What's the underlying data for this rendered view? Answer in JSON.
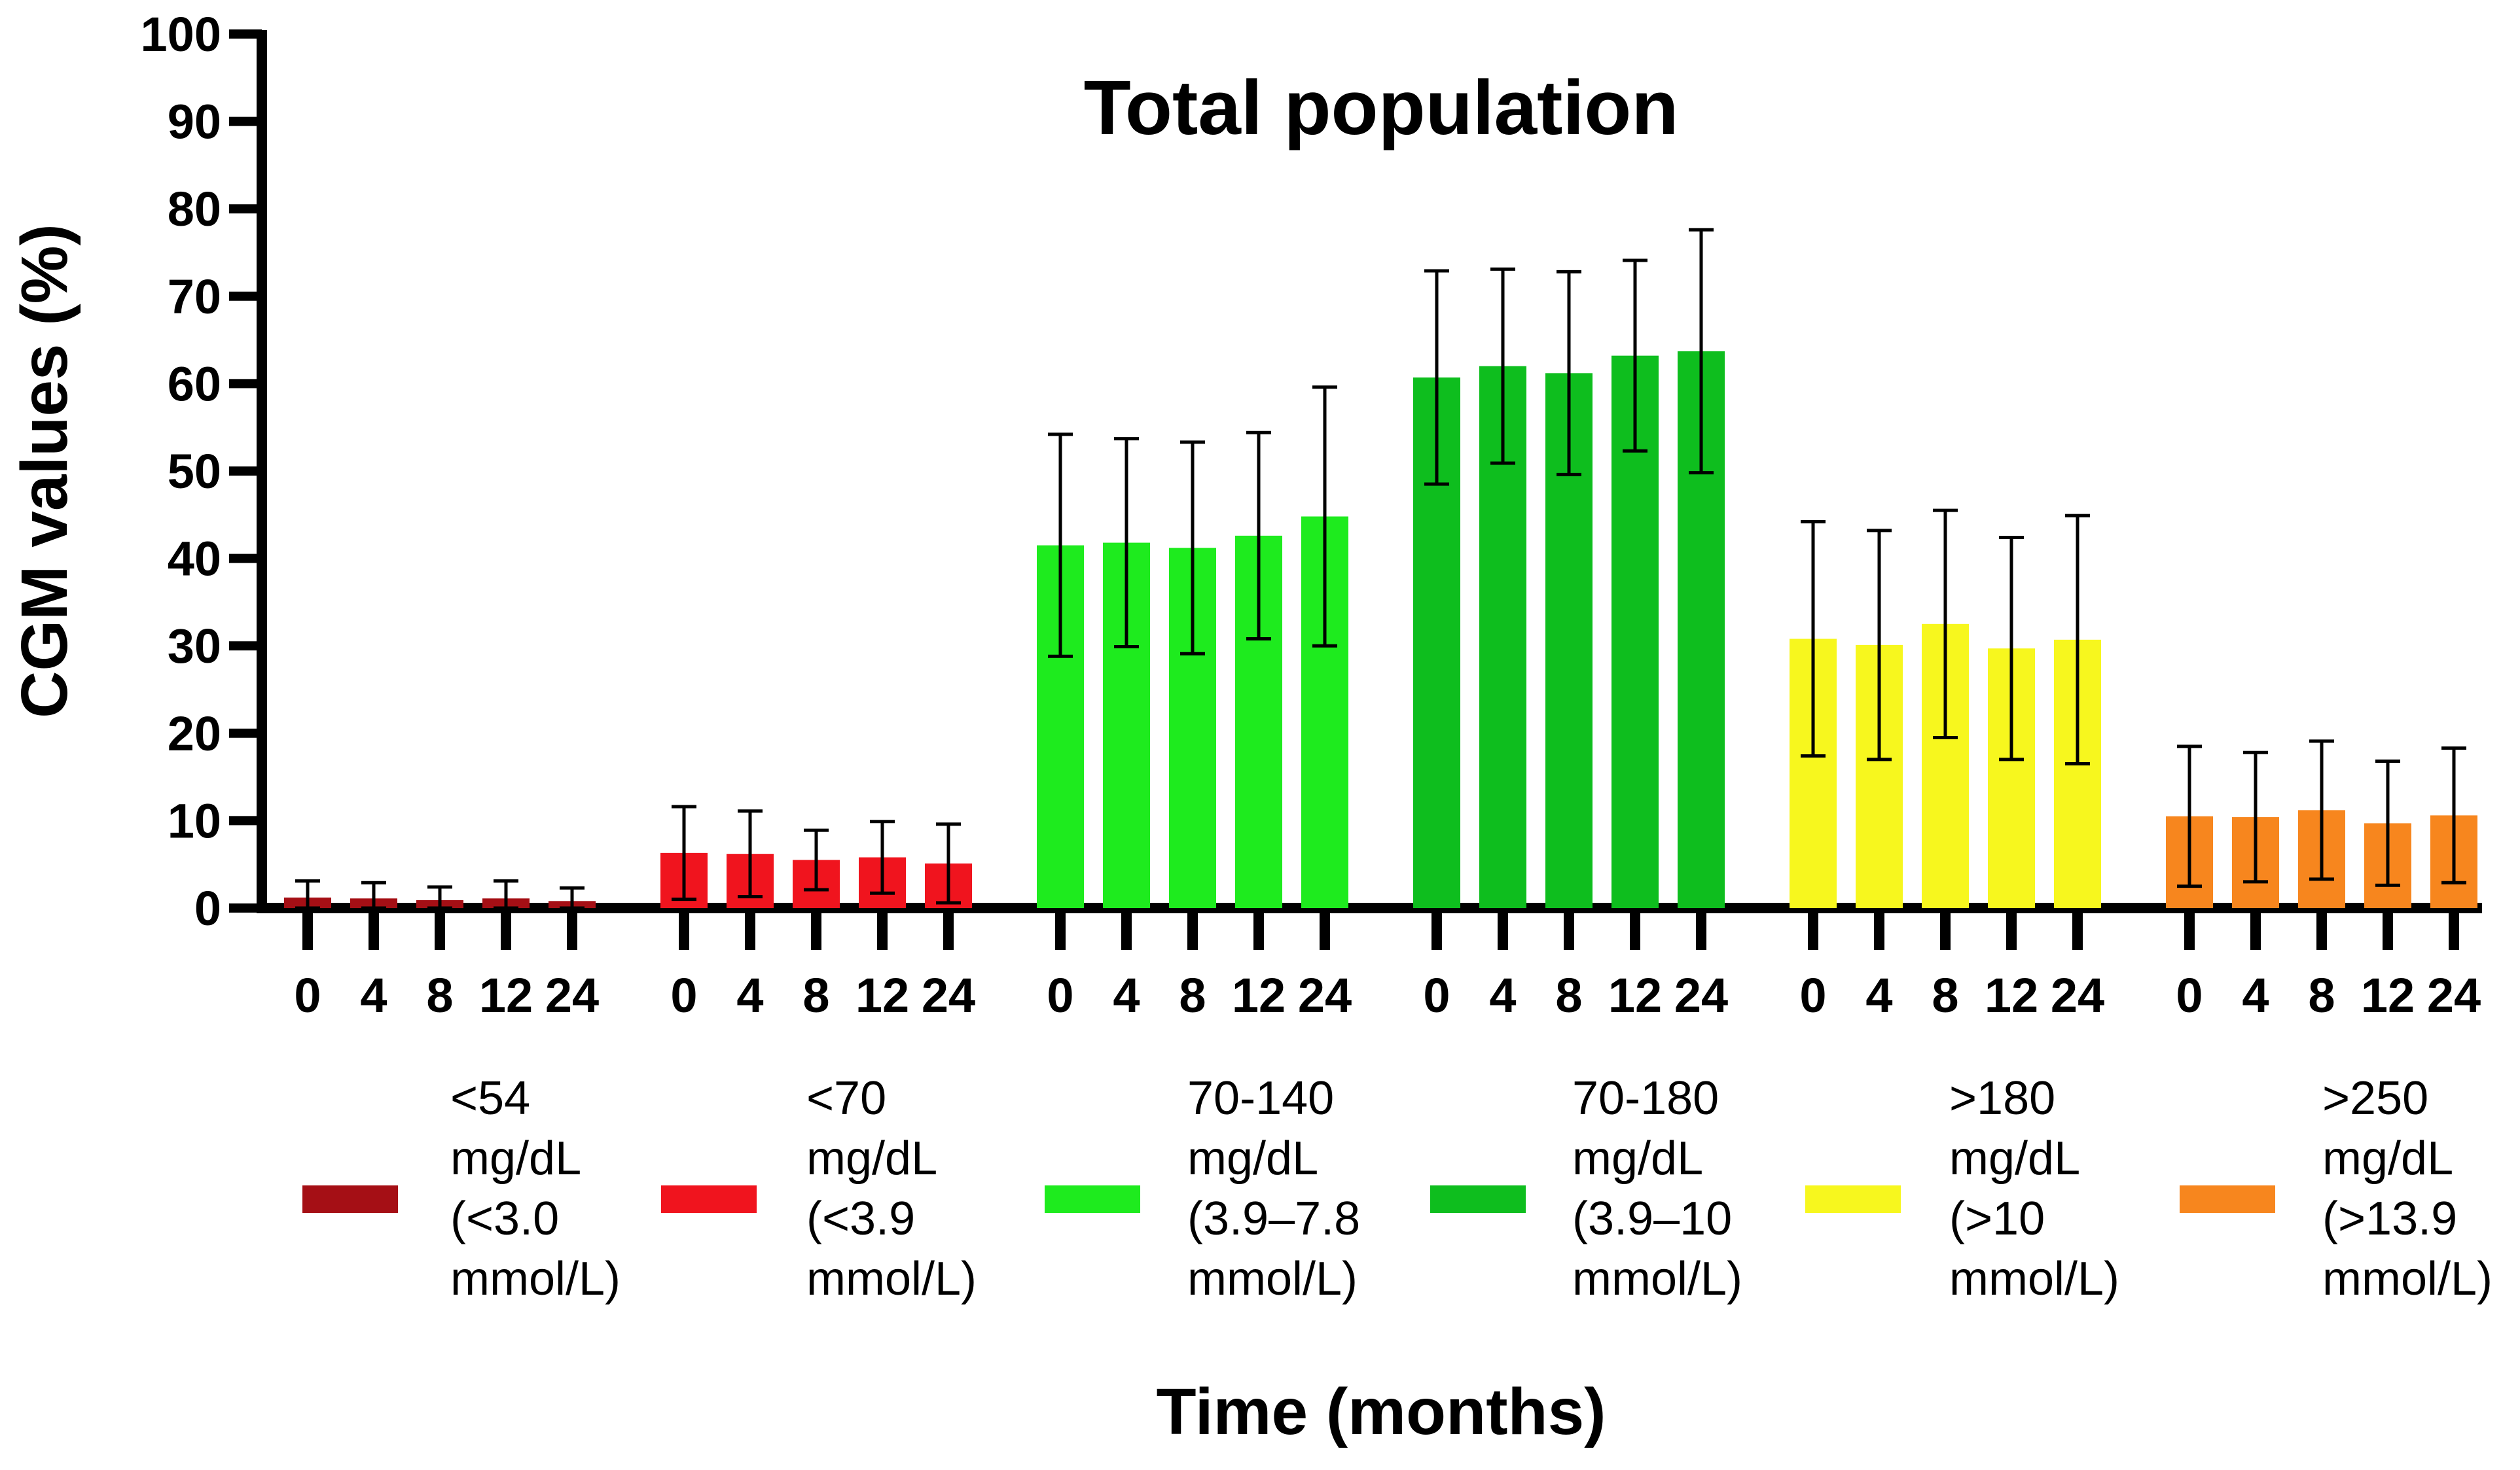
{
  "chart_data": {
    "type": "bar",
    "title": "Total population",
    "xlabel": "Time (months)",
    "ylabel": "CGM values (%)",
    "ylim": [
      0,
      100
    ],
    "yticks": [
      0,
      10,
      20,
      30,
      40,
      50,
      60,
      70,
      80,
      90,
      100
    ],
    "x": [
      "0",
      "4",
      "8",
      "12",
      "24"
    ],
    "series": [
      {
        "name": "<54 mg/dL (<3.0 mmol/L)",
        "legend_lines": [
          "<54",
          "mg/dL",
          "(<3.0",
          "mmol/L)"
        ],
        "color": "#A50F15",
        "values": [
          1.2,
          1.1,
          0.9,
          1.1,
          0.8
        ],
        "sd": [
          1.9,
          1.8,
          1.5,
          2.0,
          1.5
        ]
      },
      {
        "name": "<70 mg/dL (<3.9 mmol/L)",
        "legend_lines": [
          "<70",
          "mg/dL",
          "(<3.9",
          "mmol/L)"
        ],
        "color": "#F0141E",
        "values": [
          6.3,
          6.2,
          5.5,
          5.8,
          5.1
        ],
        "sd": [
          5.3,
          4.9,
          3.4,
          4.1,
          4.5
        ]
      },
      {
        "name": "70-140 mg/dL (3.9–7.8 mmol/L)",
        "legend_lines": [
          "70-140",
          "mg/dL",
          "(3.9–7.8",
          "mmol/L)"
        ],
        "color": "#1EEB1E",
        "values": [
          41.5,
          41.8,
          41.2,
          42.6,
          44.8
        ],
        "sd": [
          12.7,
          11.9,
          12.1,
          11.8,
          14.8
        ]
      },
      {
        "name": "70-180 mg/dL (3.9–10 mmol/L)",
        "legend_lines": [
          "70-180",
          "mg/dL",
          "(3.9–10",
          "mmol/L)"
        ],
        "color": "#0EBE1E",
        "values": [
          60.7,
          62.0,
          61.2,
          63.2,
          63.7
        ],
        "sd": [
          12.2,
          11.1,
          11.6,
          10.9,
          13.9
        ]
      },
      {
        "name": ">180 mg/dL (>10 mmol/L)",
        "legend_lines": [
          ">180",
          "mg/dL",
          "(>10",
          "mmol/L)"
        ],
        "color": "#F7F71E",
        "values": [
          30.8,
          30.1,
          32.5,
          29.7,
          30.7
        ],
        "sd": [
          13.4,
          13.1,
          13.0,
          12.7,
          14.2
        ]
      },
      {
        "name": ">250 mg/dL (>13.9 mmol/L)",
        "legend_lines": [
          ">250",
          "mg/dL",
          "(>13.9",
          "mmol/L)"
        ],
        "color": "#F7861E",
        "values": [
          10.5,
          10.4,
          11.2,
          9.7,
          10.6
        ],
        "sd": [
          8.0,
          7.4,
          7.9,
          7.1,
          7.7
        ]
      }
    ],
    "legend_position": "bottom",
    "grid": false
  }
}
